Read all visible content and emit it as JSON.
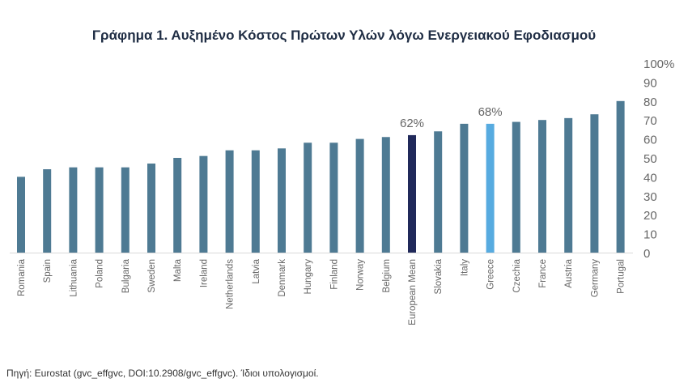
{
  "chart_data": {
    "type": "bar",
    "title": "Γράφημα 1. Αυξημένο Κόστος Πρώτων Υλών λόγω Ενεργειακού Εφοδιασμού",
    "categories": [
      "Romania",
      "Spain",
      "Lithuania",
      "Poland",
      "Bulgaria",
      "Sweden",
      "Malta",
      "Ireland",
      "Netherlands",
      "Latvia",
      "Denmark",
      "Hungary",
      "Finland",
      "Norway",
      "Belgium",
      "European Mean",
      "Slovakia",
      "Italy",
      "Greece",
      "Czechia",
      "France",
      "Austria",
      "Germany",
      "Portugal"
    ],
    "values": [
      40,
      44,
      45,
      45,
      45,
      47,
      50,
      51,
      54,
      54,
      55,
      58,
      58,
      60,
      61,
      62,
      64,
      68,
      68,
      69,
      70,
      71,
      73,
      80
    ],
    "ylim": [
      0,
      100
    ],
    "yticks": [
      "0",
      "10",
      "20",
      "30",
      "40",
      "50",
      "60",
      "70",
      "80",
      "90",
      "100%"
    ],
    "annotations": {
      "European Mean": "62%",
      "Greece": "68%"
    },
    "colors": {
      "default": "#4e7a93",
      "European Mean": "#20295a",
      "Greece": "#57abe0"
    },
    "xlabel": "",
    "ylabel": "",
    "y_axis_position": "right",
    "grid": false
  },
  "source": "Πηγή: Eurostat (gvc_effgvc, DOI:10.2908/gvc_effgvc). Ίδιοι υπολογισμοί."
}
